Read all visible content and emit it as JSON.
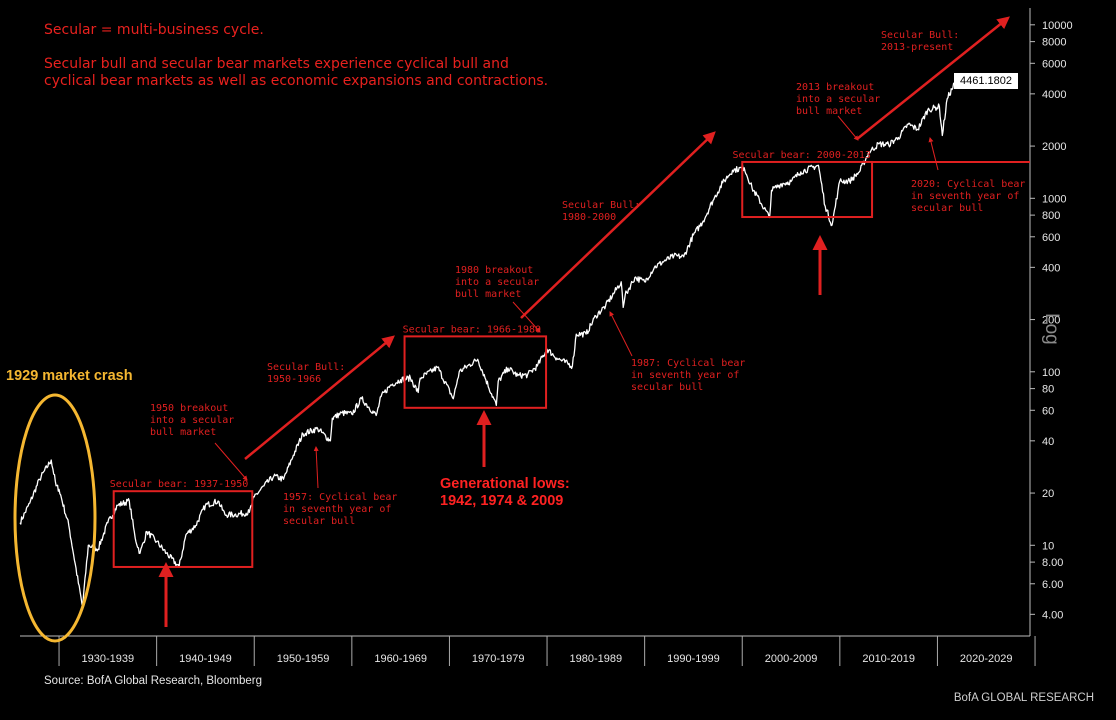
{
  "header": {
    "definition": "Secular = multi-business cycle.",
    "description_line1": "Secular bull and secular bear markets experience cyclical bull and",
    "description_line2": "cyclical bear markets as well as economic expansions and contractions."
  },
  "source": "Source: BofA Global Research, Bloomberg",
  "brand": "BofA GLOBAL RESEARCH",
  "scale_label": "Log",
  "last_value": "4461.1802",
  "crash_label": "1929 market crash",
  "generational_lows": "Generational lows:\n1942, 1974 & 2009",
  "colors": {
    "series": "#ffffff",
    "annotation": "#e02020",
    "highlight": "#f5b731",
    "background": "#000000"
  },
  "chart_data": {
    "type": "line",
    "scale": "log",
    "ylim": [
      3,
      12500
    ],
    "xlim": [
      1926,
      2030
    ],
    "y_ticks": [
      4,
      6,
      8,
      10,
      20,
      40,
      60,
      80,
      100,
      200,
      400,
      600,
      800,
      1000,
      2000,
      4000,
      6000,
      8000,
      10000
    ],
    "y_tick_labels": [
      "4.00",
      "6.00",
      "8.00",
      "10",
      "20",
      "40",
      "60",
      "80",
      "100",
      "200",
      "400",
      "600",
      "800",
      "1000",
      "2000",
      "4000",
      "6000",
      "8000",
      "10000"
    ],
    "x_categories": [
      "1930-1939",
      "1940-1949",
      "1950-1959",
      "1960-1969",
      "1970-1979",
      "1980-1989",
      "1990-1999",
      "2000-2009",
      "2010-2019",
      "2020-2029"
    ],
    "series": [
      {
        "x": [
          1926,
          1927,
          1928,
          1929.2,
          1929.7,
          1930,
          1931,
          1932.4,
          1933,
          1934,
          1935,
          1936,
          1937.2,
          1937.8,
          1938.3,
          1939,
          1940,
          1941,
          1942.3,
          1943,
          1944,
          1945,
          1946.3,
          1947,
          1948,
          1949.5,
          1950,
          1951,
          1952,
          1953,
          1954,
          1955,
          1956.5,
          1957.8,
          1958,
          1959,
          1960,
          1961,
          1962.5,
          1963,
          1964,
          1965,
          1966,
          1966.8,
          1967,
          1968.8,
          1970.4,
          1971,
          1972.9,
          1974.8,
          1975,
          1976,
          1977,
          1978,
          1979,
          1980,
          1981,
          1982.6,
          1983,
          1984,
          1985,
          1986,
          1987.6,
          1987.8,
          1988,
          1989,
          1990,
          1991,
          1992,
          1993,
          1994,
          1995,
          1996,
          1997,
          1998,
          1999,
          2000.2,
          2001,
          2002.8,
          2003,
          2004,
          2005,
          2006,
          2007.8,
          2008.5,
          2009.2,
          2009.8,
          2010,
          2011,
          2012,
          2013,
          2014,
          2015,
          2016,
          2017,
          2018,
          2019,
          2020.2,
          2020.5,
          2021,
          2021.9,
          2022.7
        ],
        "y": [
          13.5,
          17.5,
          24,
          31,
          22,
          21,
          13,
          4.4,
          10,
          9.5,
          13.5,
          17,
          18,
          11,
          9,
          12,
          10.5,
          9,
          7.5,
          11.5,
          13,
          17,
          18,
          15,
          15,
          15.5,
          19,
          22,
          25,
          24,
          33,
          44,
          47,
          40,
          54,
          58,
          57,
          70,
          56,
          72,
          84,
          90,
          92,
          76,
          92,
          106,
          70,
          100,
          118,
          64,
          88,
          105,
          95,
          96,
          108,
          135,
          120,
          108,
          165,
          165,
          210,
          240,
          330,
          235,
          275,
          350,
          330,
          400,
          435,
          465,
          460,
          615,
          740,
          970,
          1230,
          1450,
          1500,
          1150,
          775,
          1110,
          1210,
          1250,
          1420,
          1550,
          900,
          700,
          1100,
          1257,
          1257,
          1420,
          1850,
          2060,
          2040,
          2240,
          2670,
          2500,
          3230,
          3380,
          2300,
          3750,
          4750,
          4461
        ]
      }
    ]
  },
  "annotations": {
    "secular_bear_1937": "Secular bear: 1937-1950",
    "breakout_1950": [
      "1950 breakout",
      "into a secular",
      "bull market"
    ],
    "bull_1950": [
      "Secular Bull:",
      "1950-1966"
    ],
    "cyclical_1957": [
      "1957: Cyclical bear",
      "in seventh year of",
      "secular bull"
    ],
    "secular_bear_1966": "Secular bear: 1966-1980",
    "breakout_1980": [
      "1980 breakout",
      "into a secular",
      "bull market"
    ],
    "bull_1980": [
      "Secular Bull:",
      "1980-2000"
    ],
    "cyclical_1987": [
      "1987: Cyclical bear",
      "in seventh year of",
      "secular bull"
    ],
    "secular_bear_2000": "Secular bear: 2000-2013",
    "breakout_2013": [
      "2013 breakout",
      "into a secular",
      "bull market"
    ],
    "bull_2013": [
      "Secular Bull:",
      "2013-present"
    ],
    "cyclical_2020": [
      "2020: Cyclical bear",
      "in seventh year of",
      "secular bull"
    ]
  }
}
